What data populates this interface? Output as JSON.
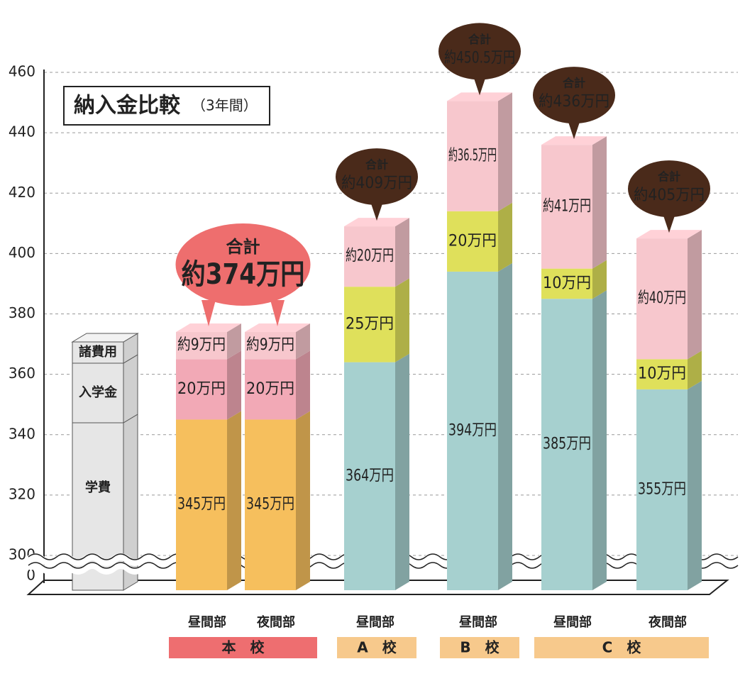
{
  "title": "納入金比較",
  "subtitle": "（3年間）",
  "chart_data": {
    "type": "bar",
    "stacked": true,
    "categories": [
      "昼間部",
      "夜間部",
      "昼間部",
      "昼間部",
      "昼間部",
      "夜間部"
    ],
    "groups": [
      "本　校",
      "本　校",
      "A　校",
      "B　校",
      "C　校",
      "C　校"
    ],
    "group_colors": [
      "#ee6e70",
      "#f7c98c",
      "#f7c98c",
      "#f7c98c"
    ],
    "ylim": [
      300,
      460
    ],
    "yticks": [
      0,
      300,
      320,
      340,
      360,
      380,
      400,
      420,
      440,
      460
    ],
    "axis_break": true,
    "grid": true,
    "series": [
      {
        "name": "学費",
        "colors": [
          "#f6bf5d",
          "#f6bf5d",
          "#a6d0cf",
          "#a6d0cf",
          "#a6d0cf",
          "#a6d0cf"
        ],
        "values": [
          345,
          345,
          364,
          394,
          385,
          355
        ],
        "value_labels": [
          "345万円",
          "345万円",
          "364万円",
          "394万円",
          "385万円",
          "355万円"
        ]
      },
      {
        "name": "入学金",
        "colors": [
          "#f2a9b6",
          "#f2a9b6",
          "#dfe05b",
          "#dfe05b",
          "#dfe05b",
          "#dfe05b"
        ],
        "values": [
          20,
          20,
          25,
          20,
          10,
          10
        ],
        "value_labels": [
          "20万円",
          "20万円",
          "25万円",
          "20万円",
          "10万円",
          "10万円"
        ]
      },
      {
        "name": "諸費用",
        "colors": [
          "#f7c7cd",
          "#f7c7cd",
          "#f7c7cd",
          "#f7c7cd",
          "#f7c7cd",
          "#f7c7cd"
        ],
        "values": [
          9,
          9,
          20,
          36.5,
          41,
          40
        ],
        "value_labels": [
          "約9万円",
          "約9万円",
          "約20万円",
          "約36.5万円",
          "約41万円",
          "約40万円"
        ]
      }
    ],
    "total_label": "合計",
    "totals": [
      374,
      null,
      409,
      450.5,
      436,
      405
    ],
    "total_labels": [
      "約374万円",
      null,
      "約409万円",
      "約450.5万円",
      "約436万円",
      "約405万円"
    ],
    "total_colors": [
      "#ee6e6e",
      null,
      "#4a2a1a",
      "#4a2a1a",
      "#4a2a1a",
      "#4a2a1a"
    ]
  }
}
